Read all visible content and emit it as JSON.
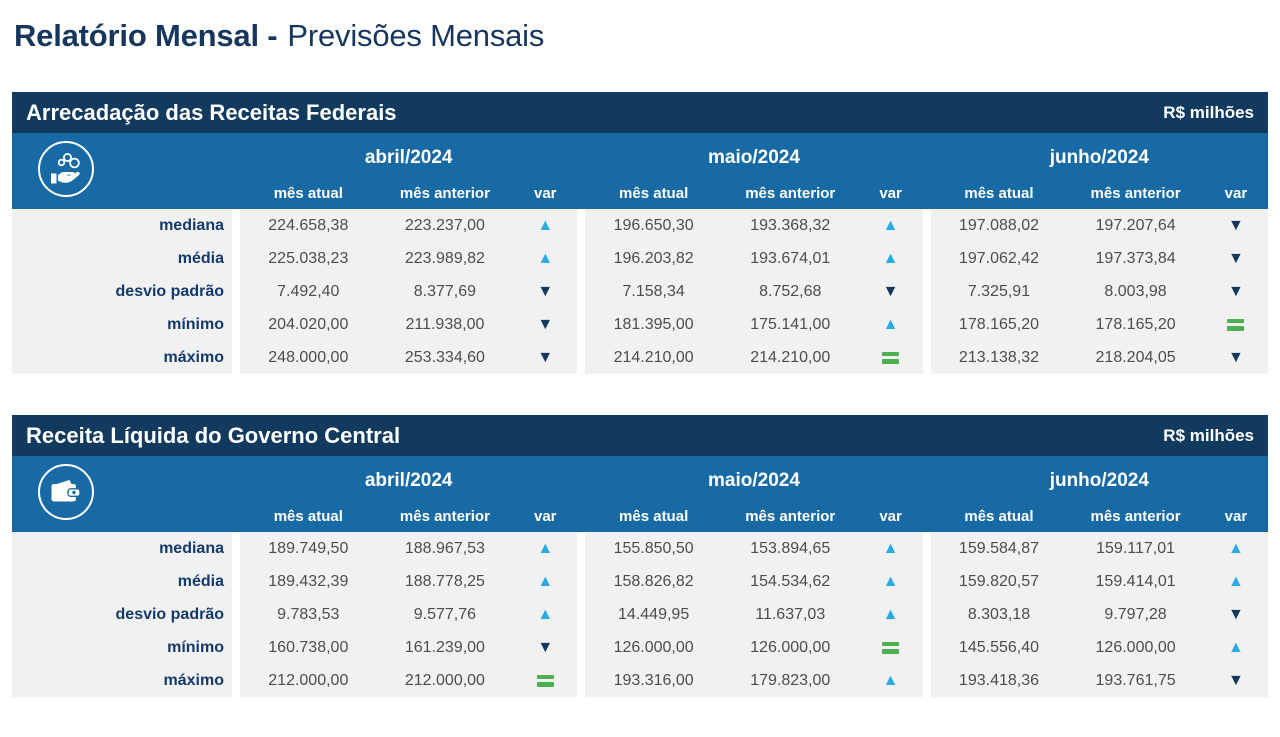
{
  "page": {
    "title_bold": "Relatório Mensal -",
    "title_regular": "Previsões Mensais"
  },
  "months": [
    "abril/2024",
    "maio/2024",
    "junho/2024"
  ],
  "column_headers": {
    "current": "mês atual",
    "previous": "mês anterior",
    "variation": "var"
  },
  "colors": {
    "navy": "#12395E",
    "band": "#186AA5",
    "up": "#29ABE2",
    "down": "#14395D",
    "equal": "#4CB050",
    "label": "#14396B",
    "value": "#4D4D4D",
    "rowbg": "#F1F1F2"
  },
  "tables": [
    {
      "title": "Arrecadação das Receitas Federais",
      "unit_label": "R$ milhões",
      "icon": "coins-hand",
      "rows": [
        {
          "label": "mediana",
          "cells": [
            {
              "current": "224.658,38",
              "previous": "223.237,00",
              "variation": "up"
            },
            {
              "current": "196.650,30",
              "previous": "193.368,32",
              "variation": "up"
            },
            {
              "current": "197.088,02",
              "previous": "197.207,64",
              "variation": "down"
            }
          ]
        },
        {
          "label": "média",
          "cells": [
            {
              "current": "225.038,23",
              "previous": "223.989,82",
              "variation": "up"
            },
            {
              "current": "196.203,82",
              "previous": "193.674,01",
              "variation": "up"
            },
            {
              "current": "197.062,42",
              "previous": "197.373,84",
              "variation": "down"
            }
          ]
        },
        {
          "label": "desvio padrão",
          "cells": [
            {
              "current": "7.492,40",
              "previous": "8.377,69",
              "variation": "down"
            },
            {
              "current": "7.158,34",
              "previous": "8.752,68",
              "variation": "down"
            },
            {
              "current": "7.325,91",
              "previous": "8.003,98",
              "variation": "down"
            }
          ]
        },
        {
          "label": "mínimo",
          "cells": [
            {
              "current": "204.020,00",
              "previous": "211.938,00",
              "variation": "down"
            },
            {
              "current": "181.395,00",
              "previous": "175.141,00",
              "variation": "up"
            },
            {
              "current": "178.165,20",
              "previous": "178.165,20",
              "variation": "equal"
            }
          ]
        },
        {
          "label": "máximo",
          "cells": [
            {
              "current": "248.000,00",
              "previous": "253.334,60",
              "variation": "down"
            },
            {
              "current": "214.210,00",
              "previous": "214.210,00",
              "variation": "equal"
            },
            {
              "current": "213.138,32",
              "previous": "218.204,05",
              "variation": "down"
            }
          ]
        }
      ]
    },
    {
      "title": "Receita Líquida do Governo Central",
      "unit_label": "R$ milhões",
      "icon": "wallet",
      "rows": [
        {
          "label": "mediana",
          "cells": [
            {
              "current": "189.749,50",
              "previous": "188.967,53",
              "variation": "up"
            },
            {
              "current": "155.850,50",
              "previous": "153.894,65",
              "variation": "up"
            },
            {
              "current": "159.584,87",
              "previous": "159.117,01",
              "variation": "up"
            }
          ]
        },
        {
          "label": "média",
          "cells": [
            {
              "current": "189.432,39",
              "previous": "188.778,25",
              "variation": "up"
            },
            {
              "current": "158.826,82",
              "previous": "154.534,62",
              "variation": "up"
            },
            {
              "current": "159.820,57",
              "previous": "159.414,01",
              "variation": "up"
            }
          ]
        },
        {
          "label": "desvio padrão",
          "cells": [
            {
              "current": "9.783,53",
              "previous": "9.577,76",
              "variation": "up"
            },
            {
              "current": "14.449,95",
              "previous": "11.637,03",
              "variation": "up"
            },
            {
              "current": "8.303,18",
              "previous": "9.797,28",
              "variation": "down"
            }
          ]
        },
        {
          "label": "mínimo",
          "cells": [
            {
              "current": "160.738,00",
              "previous": "161.239,00",
              "variation": "down"
            },
            {
              "current": "126.000,00",
              "previous": "126.000,00",
              "variation": "equal"
            },
            {
              "current": "145.556,40",
              "previous": "126.000,00",
              "variation": "up"
            }
          ]
        },
        {
          "label": "máximo",
          "cells": [
            {
              "current": "212.000,00",
              "previous": "212.000,00",
              "variation": "equal"
            },
            {
              "current": "193.316,00",
              "previous": "179.823,00",
              "variation": "up"
            },
            {
              "current": "193.418,36",
              "previous": "193.761,75",
              "variation": "down"
            }
          ]
        }
      ]
    }
  ]
}
